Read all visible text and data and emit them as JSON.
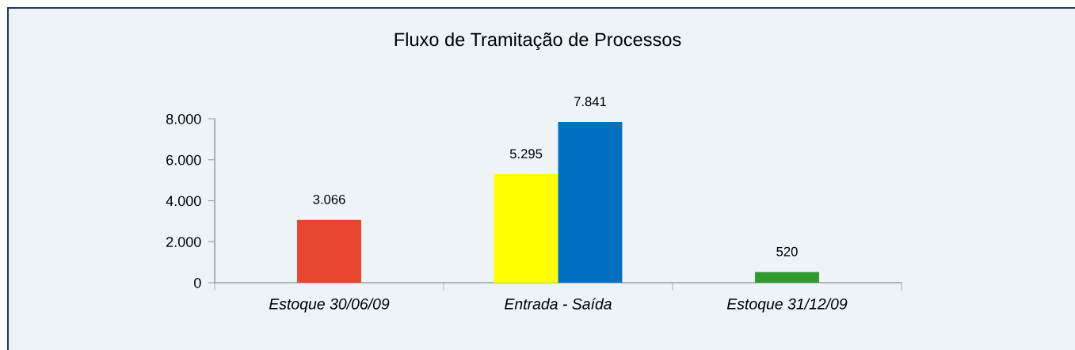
{
  "chart_data": {
    "type": "bar",
    "title": "Fluxo de Tramitação de Processos",
    "categories": [
      "Estoque 30/06/09",
      "Entrada - Saída",
      "Estoque 31/12/09"
    ],
    "series": [
      {
        "colors": [
          "#e84530",
          "#ffff00",
          "#2e9a30"
        ],
        "values": [
          3066,
          5295,
          520
        ],
        "value_labels": [
          "3.066",
          "5.295",
          "520"
        ]
      },
      {
        "color": "#0070c0",
        "values": [
          null,
          7841,
          null
        ],
        "value_labels": [
          null,
          "7.841",
          null
        ]
      }
    ],
    "ylim": [
      0,
      8000
    ],
    "yticks": [
      0,
      {
        "value": 2000,
        "label": "2.000"
      },
      {
        "value": 4000,
        "label": "4.000"
      },
      {
        "value": 6000,
        "label": "6.000"
      },
      {
        "value": 8000,
        "label": "8.000"
      }
    ],
    "grid": false
  }
}
